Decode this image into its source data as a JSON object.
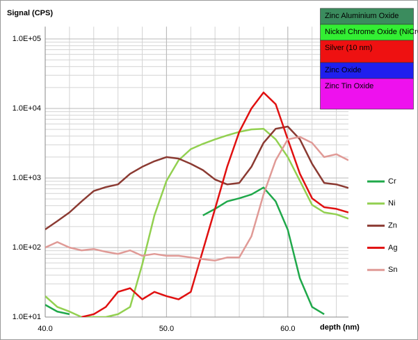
{
  "chart_data": {
    "type": "line",
    "y_axis_label": "Signal (CPS)",
    "x_axis_label": "depth (nm)",
    "log_y": true,
    "grid": true,
    "xlim": [
      40,
      65
    ],
    "xticks": [
      {
        "value": 40,
        "label": "40.0"
      },
      {
        "value": 50,
        "label": "50.0"
      },
      {
        "value": 60,
        "label": "60.0"
      }
    ],
    "ylim": [
      10,
      150000
    ],
    "yticks": [
      {
        "value": 10,
        "label": "1.0E+01"
      },
      {
        "value": 100,
        "label": "1.0E+02"
      },
      {
        "value": 1000,
        "label": "1.0E+03"
      },
      {
        "value": 10000,
        "label": "1.0E+04"
      },
      {
        "value": 100000,
        "label": "1.0E+05"
      }
    ],
    "x": [
      40,
      41,
      42,
      43,
      44,
      45,
      46,
      47,
      48,
      49,
      50,
      51,
      52,
      53,
      54,
      55,
      56,
      57,
      58,
      59,
      60,
      61,
      62,
      63,
      64,
      65
    ],
    "series": [
      {
        "name": "Cr",
        "color": "#1fa84a",
        "values": [
          15,
          12,
          11,
          null,
          null,
          null,
          null,
          null,
          null,
          null,
          null,
          null,
          null,
          290,
          360,
          460,
          510,
          580,
          730,
          460,
          180,
          36,
          14,
          11,
          null,
          null
        ]
      },
      {
        "name": "Ni",
        "color": "#92d050",
        "values": [
          20,
          14,
          12,
          10,
          10,
          10,
          11,
          14,
          57,
          290,
          910,
          1800,
          2600,
          3100,
          3600,
          4100,
          4600,
          5000,
          5100,
          3600,
          2000,
          910,
          410,
          320,
          300,
          260
        ]
      },
      {
        "name": "Zn",
        "color": "#8b3a32",
        "values": [
          182,
          240,
          320,
          460,
          650,
          740,
          810,
          1150,
          1450,
          1740,
          2000,
          1900,
          1600,
          1300,
          950,
          810,
          850,
          1450,
          3200,
          5100,
          5500,
          3600,
          1600,
          850,
          810,
          720
        ]
      },
      {
        "name": "Ag",
        "color": "#e01010",
        "values": [
          null,
          null,
          null,
          10,
          11,
          14,
          23,
          26,
          18,
          23,
          20,
          18,
          23,
          91,
          360,
          1450,
          4600,
          10000,
          17000,
          11500,
          3600,
          1150,
          510,
          380,
          360,
          320
        ]
      },
      {
        "name": "Sn",
        "color": "#e09a96",
        "values": [
          100,
          120,
          100,
          91,
          95,
          87,
          81,
          91,
          76,
          81,
          76,
          76,
          72,
          68,
          65,
          72,
          72,
          145,
          580,
          1800,
          3600,
          3900,
          3200,
          2000,
          2200,
          1800
        ]
      }
    ],
    "layers": [
      {
        "name": "Zinc Aluminium Oxide",
        "color": "#3b8c5e"
      },
      {
        "name": "Nickel Chrome Oxide (NiCrOx)",
        "color": "#33ee33"
      },
      {
        "name": "Silver (10 nm)",
        "color": "#ee1111"
      },
      {
        "name": "Zinc Oxide",
        "color": "#1f1fee"
      },
      {
        "name": "Zinc Tin Oxide",
        "color": "#ee11ee"
      }
    ]
  }
}
